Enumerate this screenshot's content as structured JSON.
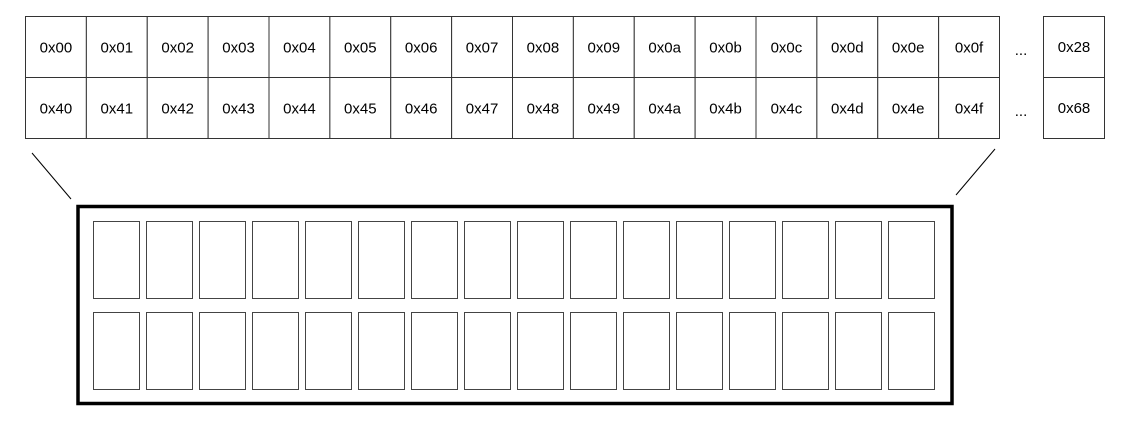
{
  "memory_map": {
    "row1": [
      "0x00",
      "0x01",
      "0x02",
      "0x03",
      "0x04",
      "0x05",
      "0x06",
      "0x07",
      "0x08",
      "0x09",
      "0x0a",
      "0x0b",
      "0x0c",
      "0x0d",
      "0x0e",
      "0x0f"
    ],
    "row2": [
      "0x40",
      "0x41",
      "0x42",
      "0x43",
      "0x44",
      "0x45",
      "0x46",
      "0x47",
      "0x48",
      "0x49",
      "0x4a",
      "0x4b",
      "0x4c",
      "0x4d",
      "0x4e",
      "0x4f"
    ],
    "ellipsis": "...",
    "row1_last": "0x28",
    "row2_last": "0x68"
  },
  "display": {
    "rows": 2,
    "columns": 16
  }
}
